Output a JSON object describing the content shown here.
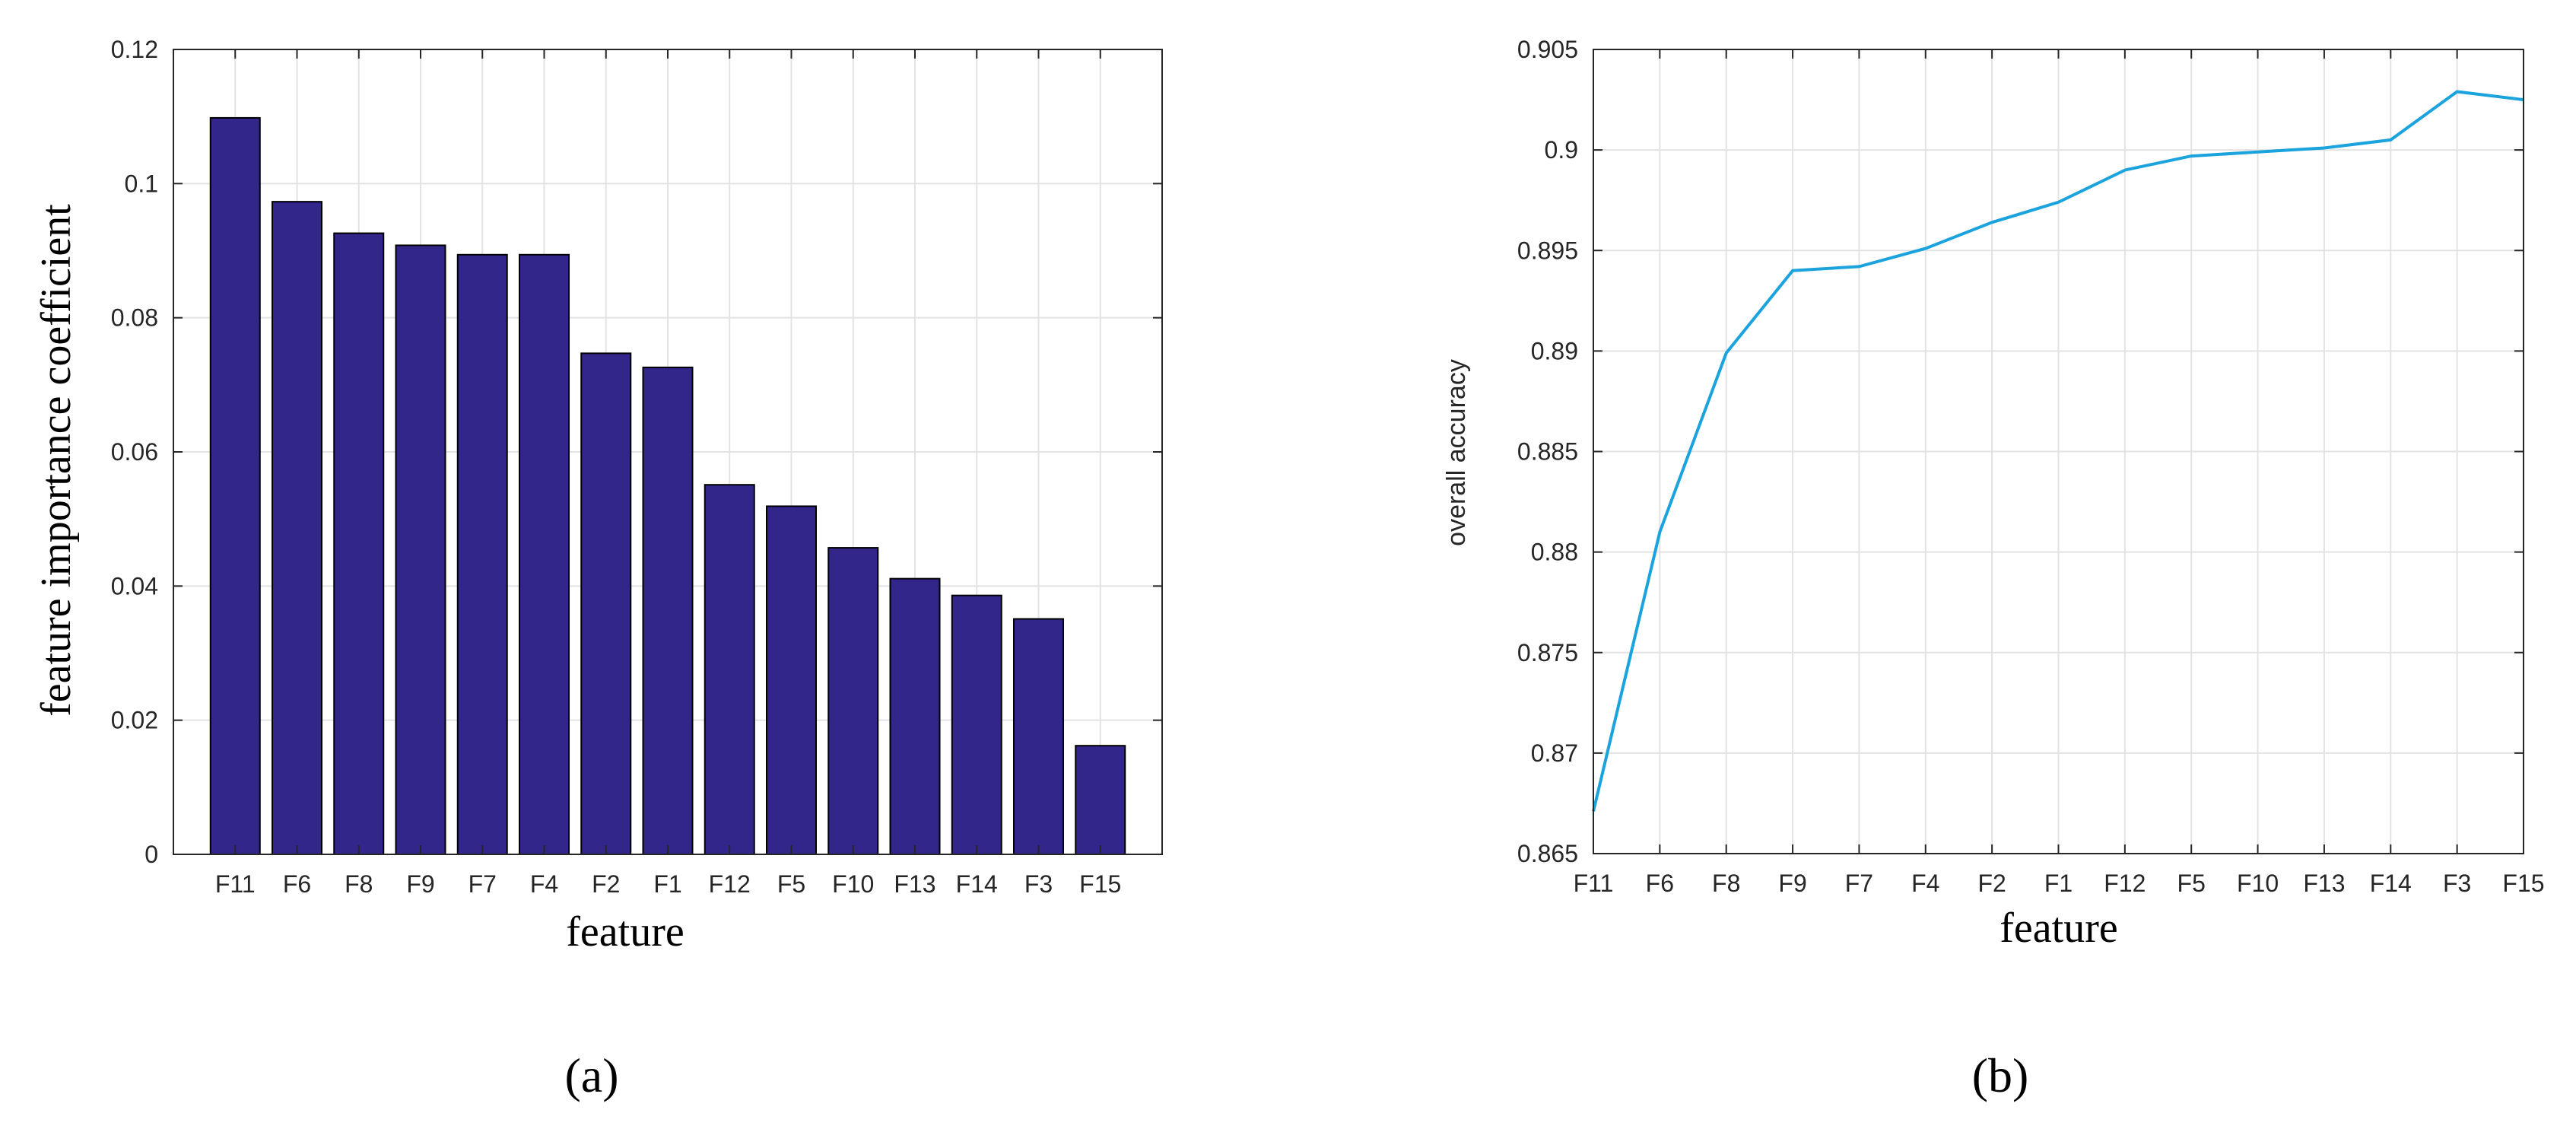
{
  "chart_data": [
    {
      "type": "bar",
      "panel_label": "(a)",
      "categories": [
        "F11",
        "F6",
        "F8",
        "F9",
        "F7",
        "F4",
        "F2",
        "F1",
        "F12",
        "F5",
        "F10",
        "F13",
        "F14",
        "F3",
        "F15"
      ],
      "values": [
        0.1098,
        0.0973,
        0.0926,
        0.0908,
        0.0894,
        0.0894,
        0.0747,
        0.0726,
        0.0551,
        0.0519,
        0.0457,
        0.0411,
        0.0386,
        0.0351,
        0.0162
      ],
      "xlabel": "feature",
      "ylabel": "feature importance coefficient",
      "ylim": [
        0,
        0.12
      ],
      "yticks": [
        "0",
        "0.02",
        "0.04",
        "0.06",
        "0.08",
        "0.1",
        "0.12"
      ],
      "grid": true,
      "colors": {
        "bar_fill": "#32268a",
        "bar_edge": "#000000",
        "grid": "#e3e3e3",
        "axis": "#262626"
      }
    },
    {
      "type": "line",
      "panel_label": "(b)",
      "categories": [
        "F11",
        "F6",
        "F8",
        "F9",
        "F7",
        "F4",
        "F2",
        "F1",
        "F12",
        "F5",
        "F10",
        "F13",
        "F14",
        "F3",
        "F15"
      ],
      "values": [
        0.8671,
        0.881,
        0.8899,
        0.894,
        0.8942,
        0.8951,
        0.8964,
        0.8974,
        0.899,
        0.8997,
        0.8999,
        0.9001,
        0.9005,
        0.9029,
        0.9025
      ],
      "xlabel": "feature",
      "ylabel": "overall accuracy",
      "ylim": [
        0.865,
        0.905
      ],
      "yticks": [
        "0.865",
        "0.87",
        "0.875",
        "0.88",
        "0.885",
        "0.89",
        "0.895",
        "0.9",
        "0.905"
      ],
      "grid": true,
      "colors": {
        "line": "#1ba3dd",
        "grid": "#e3e3e3",
        "axis": "#262626"
      }
    }
  ]
}
